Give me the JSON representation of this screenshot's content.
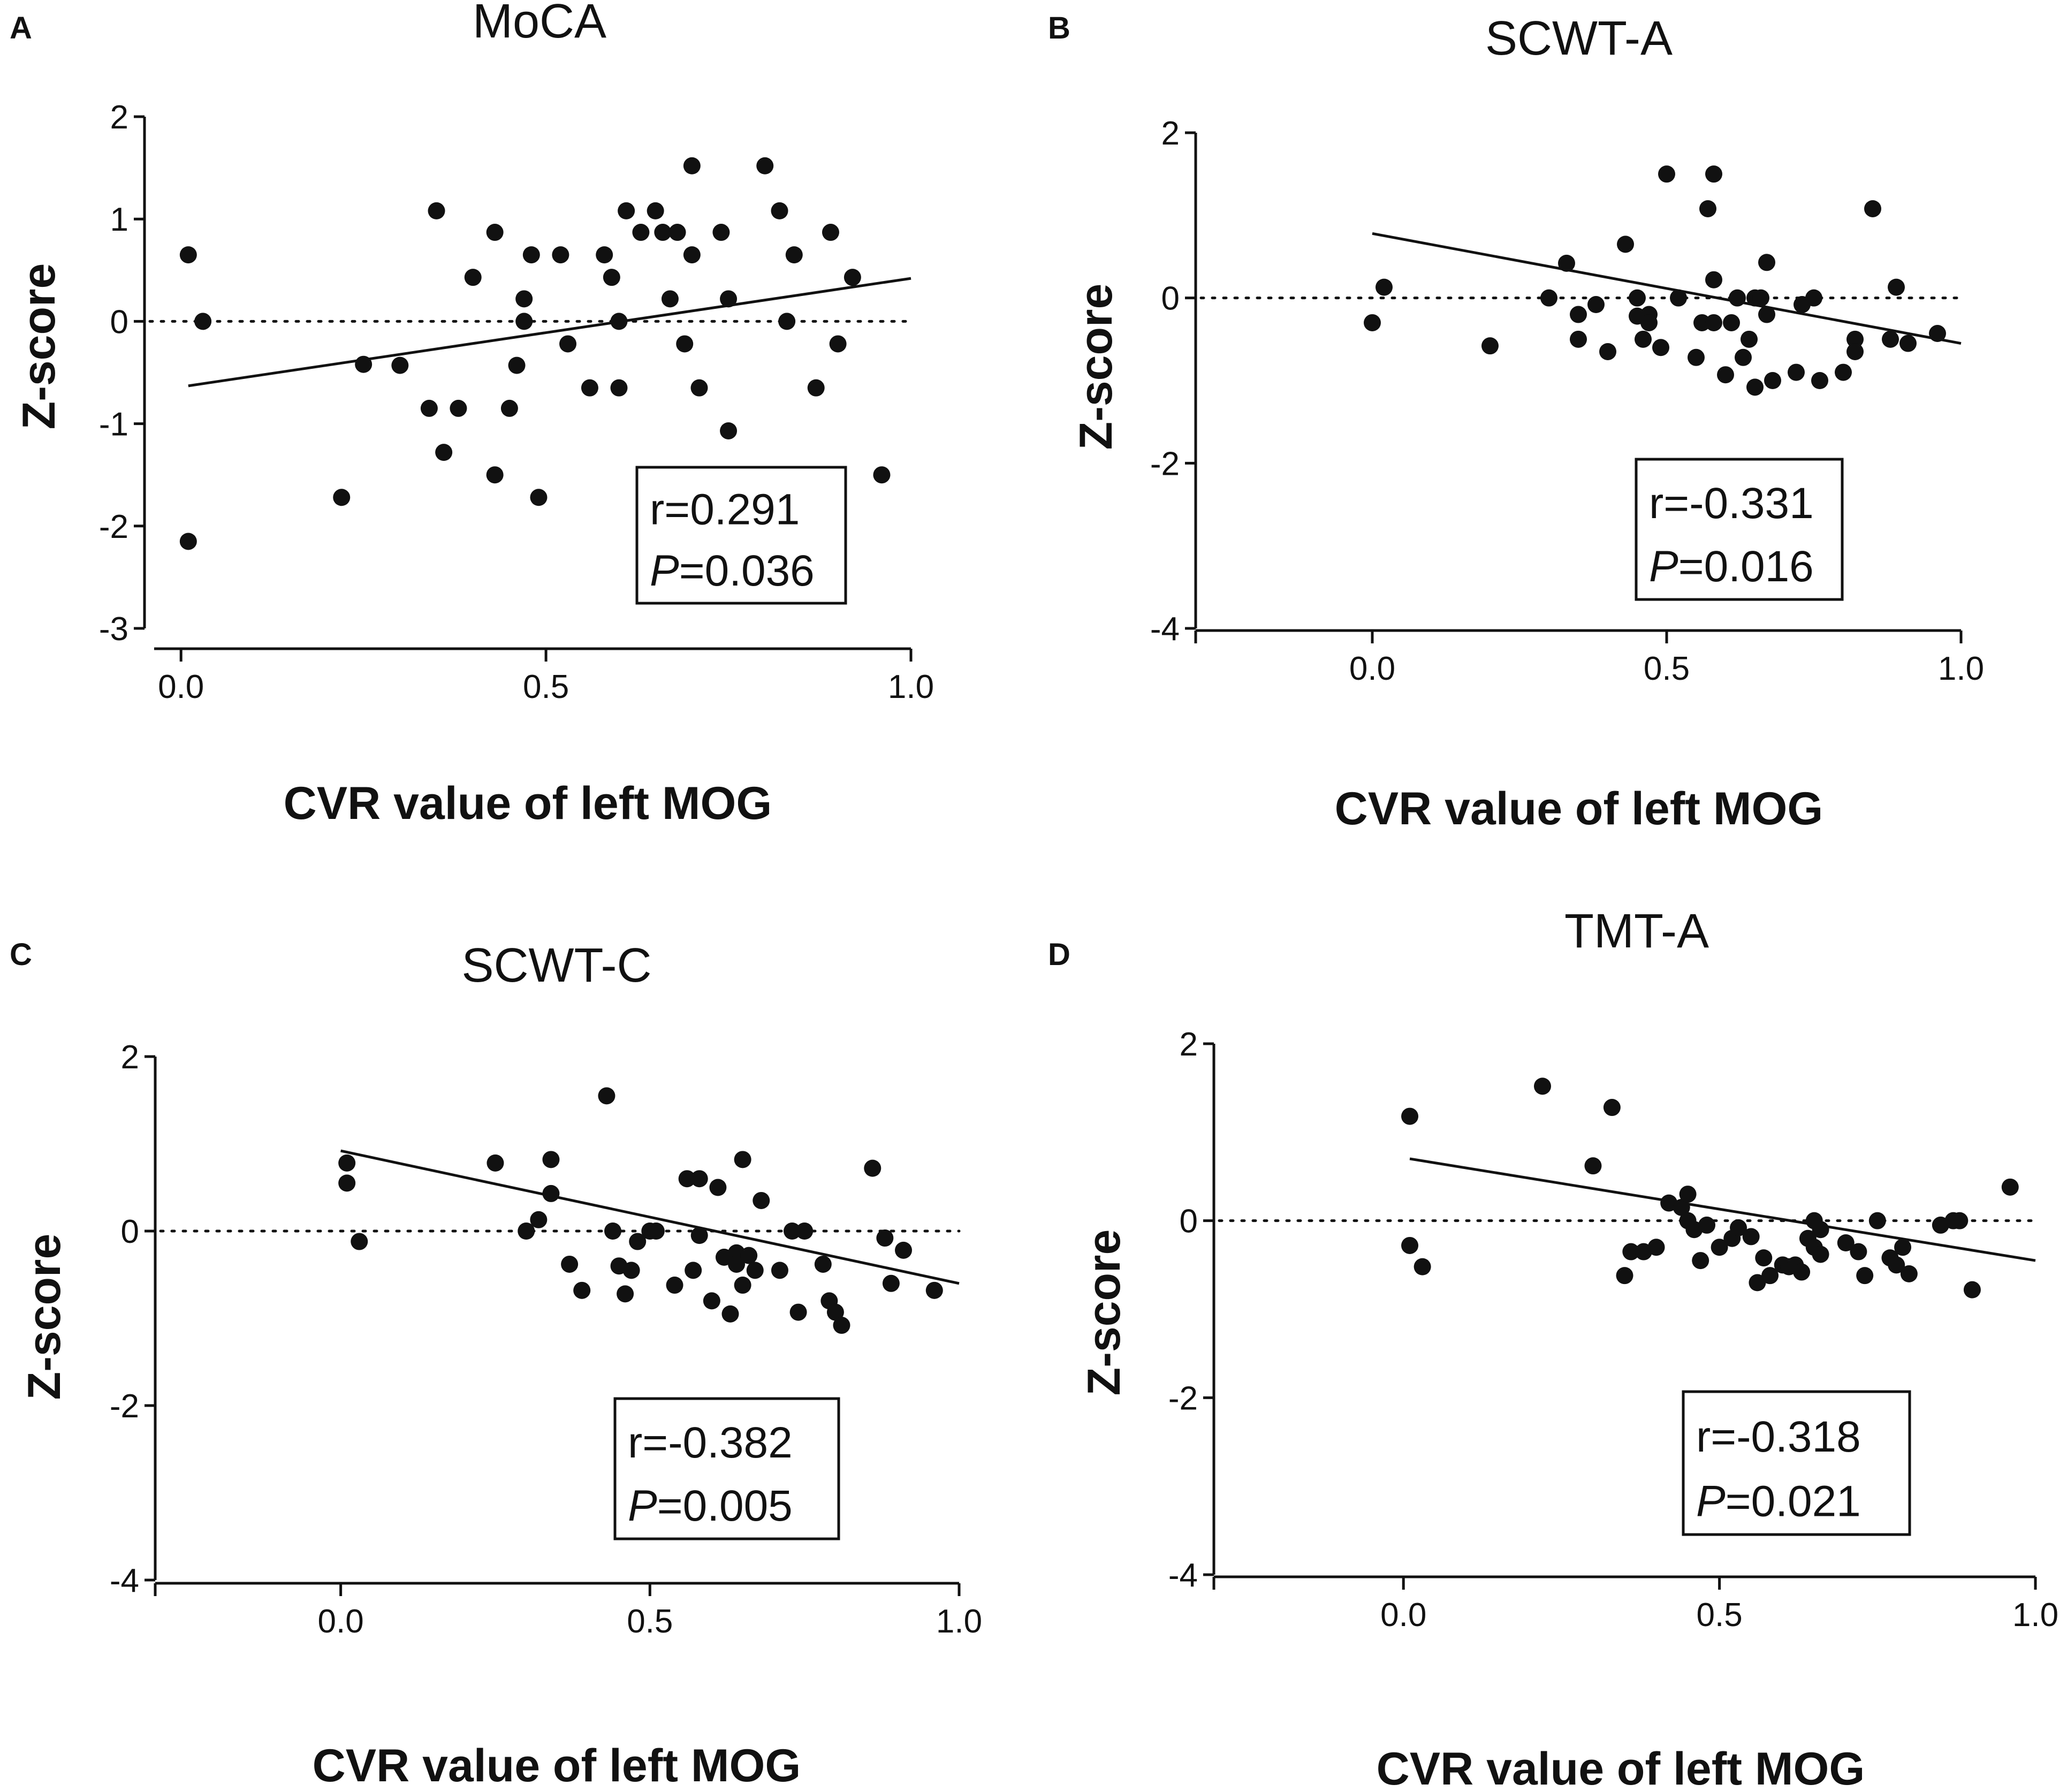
{
  "figure_type": "scatter plots with regression lines",
  "chart_data": [
    {
      "panel": "A",
      "type": "scatter",
      "title": "MoCA",
      "xlabel": "CVR value of left MOG",
      "ylabel": "Z-score",
      "xticks": [
        "0.0",
        "0.5",
        "1.0"
      ],
      "yticks": [
        "2",
        "1",
        "0",
        "-1",
        "-2",
        "-3"
      ],
      "xlim": [
        -0.05,
        1.0
      ],
      "ylim": [
        -3,
        2
      ],
      "annotation": {
        "r_label": "r=0.291",
        "p_symbol": "P",
        "p_value": "=0.036"
      },
      "regression": {
        "x": [
          0.01,
          1.0
        ],
        "y": [
          -0.63,
          0.42
        ]
      },
      "reference_line_y": 0,
      "points": [
        [
          0.01,
          0.65
        ],
        [
          0.03,
          0.0
        ],
        [
          0.01,
          -2.15
        ],
        [
          0.22,
          -1.72
        ],
        [
          0.25,
          -0.42
        ],
        [
          0.3,
          -0.43
        ],
        [
          0.34,
          -0.85
        ],
        [
          0.35,
          1.08
        ],
        [
          0.36,
          -1.28
        ],
        [
          0.38,
          -0.85
        ],
        [
          0.4,
          0.43
        ],
        [
          0.43,
          0.87
        ],
        [
          0.43,
          -1.5
        ],
        [
          0.45,
          -0.85
        ],
        [
          0.46,
          -0.43
        ],
        [
          0.47,
          0.22
        ],
        [
          0.47,
          0.0
        ],
        [
          0.48,
          0.65
        ],
        [
          0.49,
          -1.72
        ],
        [
          0.52,
          0.65
        ],
        [
          0.53,
          -0.22
        ],
        [
          0.56,
          -0.65
        ],
        [
          0.58,
          0.65
        ],
        [
          0.59,
          0.43
        ],
        [
          0.6,
          0.0
        ],
        [
          0.6,
          -0.65
        ],
        [
          0.61,
          1.08
        ],
        [
          0.63,
          0.87
        ],
        [
          0.65,
          1.08
        ],
        [
          0.66,
          0.87
        ],
        [
          0.67,
          0.22
        ],
        [
          0.68,
          0.87
        ],
        [
          0.69,
          -0.22
        ],
        [
          0.7,
          1.52
        ],
        [
          0.7,
          0.65
        ],
        [
          0.71,
          -0.65
        ],
        [
          0.74,
          0.87
        ],
        [
          0.75,
          0.22
        ],
        [
          0.75,
          -1.07
        ],
        [
          0.8,
          1.52
        ],
        [
          0.82,
          1.08
        ],
        [
          0.83,
          0.0
        ],
        [
          0.84,
          0.65
        ],
        [
          0.87,
          -0.65
        ],
        [
          0.89,
          0.87
        ],
        [
          0.9,
          -0.22
        ],
        [
          0.92,
          0.43
        ],
        [
          0.96,
          -1.5
        ]
      ]
    },
    {
      "panel": "B",
      "type": "scatter",
      "title": "SCWT-A",
      "xlabel": "CVR value of left MOG",
      "ylabel": "Z-score",
      "xticks": [
        "0.0",
        "0.5",
        "1.0"
      ],
      "yticks": [
        "2",
        "0",
        "-2",
        "-4"
      ],
      "xlim": [
        -0.3,
        1.0
      ],
      "ylim": [
        -4,
        2
      ],
      "annotation": {
        "r_label": "r=-0.331",
        "p_symbol": "P",
        "p_value": "=0.016"
      },
      "regression": {
        "x": [
          0.0,
          1.0
        ],
        "y": [
          0.78,
          -0.55
        ]
      },
      "reference_line_y": 0,
      "points": [
        [
          0.0,
          -0.3
        ],
        [
          0.02,
          0.13
        ],
        [
          0.2,
          -0.58
        ],
        [
          0.3,
          0.0
        ],
        [
          0.33,
          0.42
        ],
        [
          0.35,
          -0.2
        ],
        [
          0.35,
          -0.5
        ],
        [
          0.38,
          -0.08
        ],
        [
          0.4,
          -0.65
        ],
        [
          0.43,
          0.65
        ],
        [
          0.45,
          0.0
        ],
        [
          0.45,
          -0.22
        ],
        [
          0.46,
          -0.5
        ],
        [
          0.47,
          -0.2
        ],
        [
          0.47,
          -0.3
        ],
        [
          0.49,
          -0.6
        ],
        [
          0.5,
          1.5
        ],
        [
          0.52,
          0.0
        ],
        [
          0.55,
          -0.72
        ],
        [
          0.56,
          -0.3
        ],
        [
          0.57,
          1.08
        ],
        [
          0.58,
          0.22
        ],
        [
          0.58,
          1.5
        ],
        [
          0.58,
          -0.3
        ],
        [
          0.6,
          -0.93
        ],
        [
          0.61,
          -0.3
        ],
        [
          0.62,
          0.0
        ],
        [
          0.63,
          -0.72
        ],
        [
          0.64,
          -0.5
        ],
        [
          0.65,
          0.0
        ],
        [
          0.65,
          -1.08
        ],
        [
          0.66,
          0.0
        ],
        [
          0.67,
          0.43
        ],
        [
          0.67,
          -0.2
        ],
        [
          0.68,
          -1.0
        ],
        [
          0.72,
          -0.9
        ],
        [
          0.73,
          -0.08
        ],
        [
          0.75,
          -0.0
        ],
        [
          0.76,
          -1.0
        ],
        [
          0.8,
          -0.9
        ],
        [
          0.82,
          -0.5
        ],
        [
          0.82,
          -0.65
        ],
        [
          0.85,
          1.08
        ],
        [
          0.88,
          -0.5
        ],
        [
          0.89,
          0.13
        ],
        [
          0.91,
          -0.55
        ],
        [
          0.96,
          -0.43
        ]
      ]
    },
    {
      "panel": "C",
      "type": "scatter",
      "title": "SCWT-C",
      "xlabel": "CVR value of left MOG",
      "ylabel": "Z-score",
      "xticks": [
        "0.0",
        "0.5",
        "1.0"
      ],
      "yticks": [
        "2",
        "0",
        "-2",
        "-4"
      ],
      "xlim": [
        -0.3,
        1.0
      ],
      "ylim": [
        -4,
        2
      ],
      "annotation": {
        "r_label": "r=-0.382",
        "p_symbol": "P",
        "p_value": "=0.005"
      },
      "regression": {
        "x": [
          0.0,
          1.0
        ],
        "y": [
          0.92,
          -0.6
        ]
      },
      "reference_line_y": 0,
      "points": [
        [
          0.01,
          0.78
        ],
        [
          0.01,
          0.55
        ],
        [
          0.03,
          -0.12
        ],
        [
          0.25,
          0.78
        ],
        [
          0.3,
          0.0
        ],
        [
          0.32,
          0.13
        ],
        [
          0.34,
          0.82
        ],
        [
          0.34,
          0.43
        ],
        [
          0.37,
          -0.38
        ],
        [
          0.39,
          -0.68
        ],
        [
          0.43,
          1.55
        ],
        [
          0.44,
          0.0
        ],
        [
          0.45,
          -0.4
        ],
        [
          0.46,
          -0.72
        ],
        [
          0.47,
          -0.45
        ],
        [
          0.48,
          -0.12
        ],
        [
          0.5,
          0.0
        ],
        [
          0.51,
          0.0
        ],
        [
          0.54,
          -0.62
        ],
        [
          0.56,
          0.6
        ],
        [
          0.57,
          -0.45
        ],
        [
          0.58,
          0.6
        ],
        [
          0.58,
          -0.05
        ],
        [
          0.6,
          -0.8
        ],
        [
          0.61,
          0.5
        ],
        [
          0.62,
          -0.3
        ],
        [
          0.63,
          -0.95
        ],
        [
          0.64,
          -0.25
        ],
        [
          0.64,
          -0.38
        ],
        [
          0.65,
          0.82
        ],
        [
          0.65,
          -0.62
        ],
        [
          0.66,
          -0.28
        ],
        [
          0.67,
          -0.45
        ],
        [
          0.68,
          0.35
        ],
        [
          0.71,
          -0.45
        ],
        [
          0.73,
          0.0
        ],
        [
          0.74,
          -0.93
        ],
        [
          0.75,
          0.0
        ],
        [
          0.78,
          -0.38
        ],
        [
          0.79,
          -0.8
        ],
        [
          0.8,
          -0.93
        ],
        [
          0.81,
          -1.08
        ],
        [
          0.86,
          0.72
        ],
        [
          0.88,
          -0.08
        ],
        [
          0.89,
          -0.6
        ],
        [
          0.91,
          -0.22
        ],
        [
          0.96,
          -0.68
        ]
      ]
    },
    {
      "panel": "D",
      "type": "scatter",
      "title": "TMT-A",
      "xlabel": "CVR value of left MOG",
      "ylabel": "Z-score",
      "xticks": [
        "0.0",
        "0.5",
        "1.0"
      ],
      "yticks": [
        "2",
        "0",
        "-2",
        "-4"
      ],
      "xlim": [
        -0.3,
        1.0
      ],
      "ylim": [
        -4,
        2
      ],
      "annotation": {
        "r_label": "r=-0.318",
        "p_symbol": "P",
        "p_value": "=0.021"
      },
      "regression": {
        "x": [
          0.01,
          1.0
        ],
        "y": [
          0.7,
          -0.45
        ]
      },
      "reference_line_y": 0,
      "points": [
        [
          0.01,
          1.18
        ],
        [
          0.01,
          -0.28
        ],
        [
          0.03,
          -0.52
        ],
        [
          0.22,
          1.52
        ],
        [
          0.3,
          0.62
        ],
        [
          0.33,
          1.28
        ],
        [
          0.35,
          -0.62
        ],
        [
          0.36,
          -0.35
        ],
        [
          0.38,
          -0.35
        ],
        [
          0.4,
          -0.3
        ],
        [
          0.42,
          0.2
        ],
        [
          0.44,
          0.15
        ],
        [
          0.45,
          0.3
        ],
        [
          0.45,
          0.0
        ],
        [
          0.46,
          -0.1
        ],
        [
          0.47,
          -0.45
        ],
        [
          0.48,
          -0.05
        ],
        [
          0.5,
          -0.3
        ],
        [
          0.52,
          -0.2
        ],
        [
          0.53,
          -0.08
        ],
        [
          0.55,
          -0.18
        ],
        [
          0.56,
          -0.7
        ],
        [
          0.57,
          -0.42
        ],
        [
          0.58,
          -0.62
        ],
        [
          0.6,
          -0.5
        ],
        [
          0.61,
          -0.52
        ],
        [
          0.62,
          -0.5
        ],
        [
          0.63,
          -0.58
        ],
        [
          0.64,
          -0.2
        ],
        [
          0.65,
          0.0
        ],
        [
          0.65,
          -0.3
        ],
        [
          0.66,
          -0.1
        ],
        [
          0.66,
          -0.38
        ],
        [
          0.7,
          -0.25
        ],
        [
          0.72,
          -0.35
        ],
        [
          0.73,
          -0.62
        ],
        [
          0.75,
          0.0
        ],
        [
          0.77,
          -0.42
        ],
        [
          0.78,
          -0.5
        ],
        [
          0.79,
          -0.3
        ],
        [
          0.8,
          -0.6
        ],
        [
          0.85,
          -0.05
        ],
        [
          0.87,
          0.0
        ],
        [
          0.88,
          0.0
        ],
        [
          0.9,
          -0.78
        ],
        [
          0.96,
          0.38
        ]
      ]
    }
  ]
}
